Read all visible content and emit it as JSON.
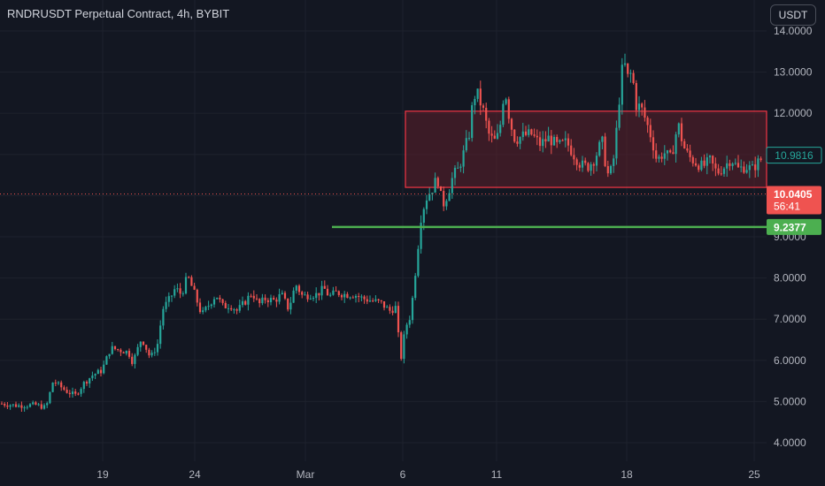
{
  "header": {
    "title": "RNDRUSDT Perpetual Contract, 4h, BYBIT",
    "currency_button": "USDT"
  },
  "colors": {
    "background": "#131722",
    "grid": "#1e222d",
    "up": "#26a69a",
    "down": "#ef5350",
    "support_line": "#4caf50",
    "range_box_border": "#f23645",
    "range_box_fill": "#5c1f2a",
    "axis_text": "#b2b5be"
  },
  "chart_data": {
    "type": "candlestick",
    "symbol": "RNDRUSDT",
    "interval": "4h",
    "exchange": "BYBIT",
    "y_ticks": [
      "14.0000",
      "13.0000",
      "12.0000",
      "11.0000",
      "10.0000",
      "9.0000",
      "8.0000",
      "7.0000",
      "6.0000",
      "5.0000",
      "4.0000"
    ],
    "y_tick_values": [
      14,
      13,
      12,
      11,
      10,
      9,
      8,
      7,
      6,
      5,
      4
    ],
    "x_ticks": [
      "19",
      "24",
      "Mar",
      "6",
      "11",
      "18",
      "25"
    ],
    "ylim": [
      3.55,
      14.75
    ],
    "grid": true,
    "price_path": [
      [
        0,
        4.95
      ],
      [
        20,
        4.9
      ],
      [
        40,
        4.92
      ],
      [
        52,
        4.85
      ],
      [
        60,
        5.5
      ],
      [
        75,
        5.25
      ],
      [
        85,
        5.15
      ],
      [
        95,
        5.45
      ],
      [
        105,
        5.65
      ],
      [
        115,
        5.75
      ],
      [
        125,
        6.3
      ],
      [
        135,
        6.25
      ],
      [
        145,
        6.2
      ],
      [
        150,
        5.95
      ],
      [
        160,
        6.55
      ],
      [
        170,
        6.05
      ],
      [
        178,
        6.4
      ],
      [
        184,
        7.25
      ],
      [
        192,
        7.5
      ],
      [
        198,
        7.75
      ],
      [
        205,
        7.6
      ],
      [
        212,
        8.05
      ],
      [
        220,
        7.6
      ],
      [
        228,
        7.1
      ],
      [
        236,
        7.35
      ],
      [
        244,
        7.6
      ],
      [
        252,
        7.3
      ],
      [
        260,
        7.35
      ],
      [
        268,
        7.2
      ],
      [
        276,
        7.4
      ],
      [
        285,
        7.65
      ],
      [
        292,
        7.35
      ],
      [
        300,
        7.5
      ],
      [
        310,
        7.45
      ],
      [
        318,
        7.6
      ],
      [
        326,
        7.25
      ],
      [
        334,
        7.85
      ],
      [
        342,
        7.55
      ],
      [
        350,
        7.6
      ],
      [
        358,
        7.6
      ],
      [
        366,
        7.75
      ],
      [
        372,
        7.55
      ],
      [
        380,
        7.65
      ],
      [
        390,
        7.6
      ],
      [
        400,
        7.6
      ],
      [
        410,
        7.5
      ],
      [
        420,
        7.45
      ],
      [
        430,
        7.4
      ],
      [
        440,
        7.2
      ],
      [
        448,
        7.3
      ],
      [
        452,
        5.9
      ],
      [
        458,
        6.8
      ],
      [
        464,
        7.1
      ],
      [
        470,
        8.3
      ],
      [
        476,
        9.55
      ],
      [
        482,
        9.95
      ],
      [
        488,
        10.15
      ],
      [
        494,
        10.45
      ],
      [
        500,
        9.75
      ],
      [
        506,
        10.05
      ],
      [
        512,
        10.5
      ],
      [
        518,
        10.65
      ],
      [
        524,
        11.05
      ],
      [
        530,
        11.5
      ],
      [
        534,
        12.25
      ],
      [
        538,
        12.55
      ],
      [
        542,
        12.3
      ],
      [
        546,
        12.05
      ],
      [
        552,
        11.5
      ],
      [
        558,
        11.3
      ],
      [
        564,
        11.5
      ],
      [
        570,
        12.65
      ],
      [
        576,
        11.8
      ],
      [
        582,
        11.35
      ],
      [
        590,
        11.45
      ],
      [
        600,
        11.5
      ],
      [
        610,
        11.25
      ],
      [
        620,
        11.4
      ],
      [
        630,
        11.2
      ],
      [
        640,
        11.3
      ],
      [
        648,
        11.0
      ],
      [
        656,
        10.75
      ],
      [
        664,
        10.7
      ],
      [
        672,
        10.9
      ],
      [
        680,
        11.35
      ],
      [
        686,
        10.5
      ],
      [
        692,
        10.65
      ],
      [
        698,
        11.9
      ],
      [
        702,
        13.0
      ],
      [
        706,
        13.15
      ],
      [
        710,
        12.8
      ],
      [
        714,
        13.05
      ],
      [
        718,
        12.2
      ],
      [
        724,
        12.15
      ],
      [
        730,
        11.8
      ],
      [
        736,
        11.4
      ],
      [
        742,
        10.85
      ],
      [
        750,
        11.05
      ],
      [
        758,
        10.9
      ],
      [
        766,
        11.75
      ],
      [
        772,
        11.2
      ],
      [
        778,
        10.95
      ],
      [
        786,
        10.8
      ],
      [
        794,
        10.7
      ],
      [
        802,
        10.85
      ],
      [
        810,
        10.55
      ],
      [
        818,
        10.7
      ],
      [
        826,
        10.9
      ],
      [
        834,
        10.65
      ],
      [
        842,
        10.7
      ],
      [
        850,
        10.65
      ],
      [
        858,
        10.85
      ],
      [
        866,
        10.98
      ]
    ],
    "current_price": "10.9816",
    "last_close": "10.0405",
    "countdown": "56:41",
    "support_level": "9.2377",
    "support_value": 9.2377,
    "range_box": {
      "top_value": 12.05,
      "bottom_value": 10.2,
      "start_index_ratio": 0.527,
      "end_index_ratio": 1.0
    }
  }
}
